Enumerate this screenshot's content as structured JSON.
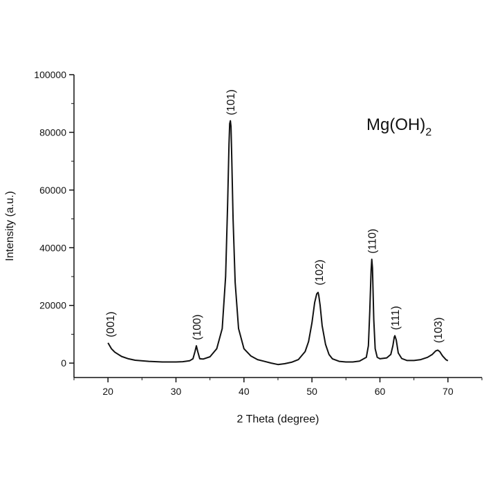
{
  "chart_data": {
    "type": "line",
    "title": "",
    "xlabel": "2 Theta (degree)",
    "ylabel": "Intensity (a.u.)",
    "xlim": [
      15,
      75
    ],
    "ylim": [
      -5000,
      100000
    ],
    "xticks": [
      20,
      30,
      40,
      50,
      60,
      70
    ],
    "yticks": [
      0,
      20000,
      40000,
      60000,
      80000,
      100000
    ],
    "xtick_labels": [
      "20",
      "30",
      "40",
      "50",
      "60",
      "70"
    ],
    "ytick_labels": [
      "0",
      "20000",
      "40000",
      "60000",
      "80000",
      "100000"
    ],
    "grid": false,
    "legend": "none",
    "annotation": {
      "text": "Mg(OH)",
      "subscript": "2"
    },
    "series": [
      {
        "color": "#111111",
        "x": [
          20,
          20.5,
          21,
          22,
          23,
          24,
          26,
          28,
          30,
          31,
          32,
          32.5,
          32.8,
          33.0,
          33.2,
          33.5,
          34,
          35,
          36,
          36.8,
          37.3,
          37.6,
          37.8,
          37.9,
          38.0,
          38.1,
          38.2,
          38.4,
          38.7,
          39.2,
          40,
          41,
          42,
          44,
          45,
          46,
          47,
          48,
          49,
          49.5,
          50,
          50.4,
          50.7,
          50.9,
          51.0,
          51.2,
          51.5,
          52,
          52.5,
          53,
          54,
          55,
          56,
          57,
          58,
          58.3,
          58.5,
          58.7,
          58.8,
          58.9,
          59.1,
          59.3,
          59.6,
          60,
          61,
          61.6,
          61.9,
          62.1,
          62.2,
          62.4,
          62.7,
          63.2,
          64,
          65,
          66,
          67,
          67.7,
          68.2,
          68.5,
          68.8,
          69.2,
          69.7,
          70
        ],
        "y": [
          7000,
          5000,
          3800,
          2300,
          1500,
          1000,
          600,
          400,
          400,
          500,
          800,
          1500,
          4000,
          6000,
          4000,
          1500,
          1400,
          2200,
          5000,
          12000,
          30000,
          55000,
          76000,
          83000,
          84000,
          82000,
          72000,
          50000,
          28000,
          12000,
          5000,
          2500,
          1200,
          0,
          -500,
          -200,
          300,
          1200,
          4000,
          7500,
          14000,
          21000,
          24000,
          24500,
          23500,
          20000,
          13000,
          6500,
          3000,
          1500,
          600,
          400,
          400,
          700,
          2000,
          6000,
          18000,
          32000,
          36000,
          33000,
          15000,
          5000,
          2000,
          1500,
          1800,
          3000,
          6000,
          9000,
          9500,
          8000,
          3500,
          1600,
          900,
          900,
          1200,
          2000,
          3000,
          4200,
          4500,
          4000,
          2500,
          1200,
          800
        ]
      }
    ],
    "peak_labels": [
      {
        "text": "(001)",
        "x": 20.3,
        "y": 7500
      },
      {
        "text": "(100)",
        "x": 33.0,
        "y": 6500
      },
      {
        "text": "(101)",
        "x": 38.0,
        "y": 84500
      },
      {
        "text": "(102)",
        "x": 51.0,
        "y": 25500
      },
      {
        "text": "(110)",
        "x": 58.8,
        "y": 36500
      },
      {
        "text": "(111)",
        "x": 62.2,
        "y": 10000
      },
      {
        "text": "(103)",
        "x": 68.5,
        "y": 5500
      }
    ]
  }
}
